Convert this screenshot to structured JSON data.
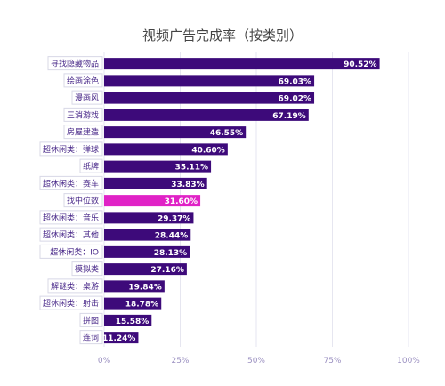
{
  "chart_data": {
    "type": "bar",
    "orientation": "horizontal",
    "title": "视频广告完成率（按类别）",
    "categories": [
      "寻找隐藏物品",
      "绘画涂色",
      "漫画风",
      "三消游戏",
      "房屋建造",
      "超休闲类：弹球",
      "纸牌",
      "超休闲类：赛车",
      "找中位数",
      "超休闲类：音乐",
      "超休闲类：其他",
      "超休闲类：IO",
      "模拟类",
      "解谜类：桌游",
      "超休闲类：射击",
      "拼图",
      "连词"
    ],
    "values": [
      90.52,
      69.03,
      69.02,
      67.19,
      46.55,
      40.6,
      35.11,
      33.83,
      31.6,
      29.37,
      28.44,
      28.13,
      27.16,
      19.84,
      18.78,
      15.58,
      11.24
    ],
    "value_labels": [
      "90.52%",
      "69.03%",
      "69.02%",
      "67.19%",
      "46.55%",
      "40.60%",
      "35.11%",
      "33.83%",
      "31.60%",
      "29.37%",
      "28.44%",
      "28.13%",
      "27.16%",
      "19.84%",
      "18.78%",
      "15.58%",
      "11.24%"
    ],
    "xlim": [
      0,
      100
    ],
    "xticks": [
      0,
      25,
      50,
      75,
      100
    ],
    "xtick_labels": [
      "0%",
      "25%",
      "50%",
      "75%",
      "100%"
    ],
    "grid": true,
    "colors": {
      "bar": "#3d0a7a",
      "highlight": "#e022c6",
      "category_text": "#4a2a8a",
      "highlight_text": "#e022c6"
    },
    "highlight_index": 8
  }
}
